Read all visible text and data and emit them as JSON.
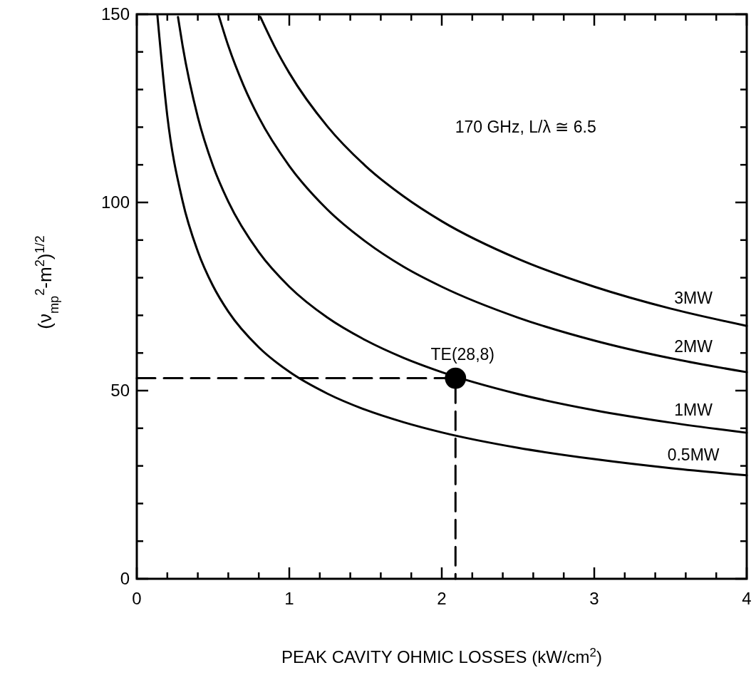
{
  "chart_data": {
    "type": "line",
    "xlabel": "PEAK CAVITY OHMIC LOSSES (kW/cm$^{2}$)",
    "ylabel": "(ν$_{mp}$$^{2}$-m$^{2}$)$^{1/2}$",
    "annotations": [
      "170 GHz, L/λ ≅ 6.5"
    ],
    "xlim": [
      0,
      4
    ],
    "ylim": [
      0,
      150
    ],
    "xticks": [
      0,
      {
        "value": 0.2,
        "label": null
      },
      {
        "value": 0.4,
        "label": null
      },
      {
        "value": 0.6,
        "label": null
      },
      {
        "value": 0.8,
        "label": null
      },
      1,
      {
        "value": 1.2,
        "label": null
      },
      {
        "value": 1.4,
        "label": null
      },
      {
        "value": 1.6,
        "label": null
      },
      {
        "value": 1.8,
        "label": null
      },
      2,
      {
        "value": 2.2,
        "label": null
      },
      {
        "value": 2.4,
        "label": null
      },
      {
        "value": 2.6,
        "label": null
      },
      {
        "value": 2.8,
        "label": null
      },
      3,
      {
        "value": 3.2,
        "label": null
      },
      {
        "value": 3.4,
        "label": null
      },
      {
        "value": 3.6,
        "label": null
      },
      {
        "value": 3.8,
        "label": null
      },
      4
    ],
    "yticks": [
      0,
      {
        "value": 10,
        "label": null
      },
      {
        "value": 20,
        "label": null
      },
      {
        "value": 30,
        "label": null
      },
      {
        "value": 40,
        "label": null
      },
      50,
      {
        "value": 60,
        "label": null
      },
      {
        "value": 70,
        "label": null
      },
      {
        "value": 80,
        "label": null
      },
      {
        "value": 90,
        "label": null
      },
      100,
      {
        "value": 110,
        "label": null
      },
      {
        "value": 120,
        "label": null
      },
      {
        "value": 130,
        "label": null
      },
      {
        "value": 140,
        "label": null
      },
      150
    ],
    "grid": false,
    "legend": "right",
    "marker": "none",
    "line_style": "solid",
    "series": [
      {
        "name": "0.5MW",
        "color": "#000000",
        "x": [
          0.135,
          0.2,
          0.3,
          0.4,
          0.5,
          0.6,
          0.8,
          1,
          1.25,
          1.5,
          1.75,
          2,
          2.5,
          3,
          3.5,
          4
        ],
        "values": [
          149.7,
          123.0,
          100.4,
          87.0,
          77.8,
          71.0,
          61.5,
          55.0,
          49.2,
          44.9,
          41.6,
          38.9,
          34.8,
          31.8,
          29.4,
          27.5
        ]
      },
      {
        "name": "1MW",
        "color": "#000000",
        "x": [
          0.27,
          0.3,
          0.4,
          0.5,
          0.6,
          0.8,
          1,
          1.25,
          1.5,
          1.75,
          2,
          2.5,
          3,
          3.5,
          4
        ],
        "values": [
          149.3,
          141.7,
          122.7,
          109.7,
          100.2,
          86.8,
          77.6,
          69.4,
          63.4,
          58.7,
          54.9,
          49.1,
          44.8,
          41.5,
          38.8
        ]
      },
      {
        "name": "2MW",
        "color": "#000000",
        "x": [
          0.535,
          0.6,
          0.7,
          0.8,
          1,
          1.25,
          1.5,
          1.75,
          2,
          2.5,
          3,
          3.5,
          4
        ],
        "values": [
          150.0,
          141.6,
          131.1,
          122.6,
          109.7,
          98.1,
          89.6,
          82.9,
          77.6,
          69.4,
          63.3,
          58.6,
          54.9
        ]
      },
      {
        "name": "3MW",
        "color": "#000000",
        "x": [
          0.81,
          0.9,
          1,
          1.25,
          1.5,
          1.75,
          2,
          2.5,
          3,
          3.5,
          4
        ],
        "values": [
          149.3,
          141.7,
          134.4,
          120.2,
          109.7,
          101.6,
          95.0,
          85.0,
          77.6,
          71.8,
          67.2
        ]
      },
      {
        "color": "#000000",
        "line_style": "dashed",
        "x": [
          0,
          2.09,
          2.09
        ],
        "values": [
          53.3,
          53.3,
          0
        ]
      },
      {
        "name": "TE(28,8)",
        "type": "scatter",
        "marker": "circle",
        "color": "#000000",
        "x": [
          2.09
        ],
        "values": [
          53.3
        ]
      }
    ]
  }
}
